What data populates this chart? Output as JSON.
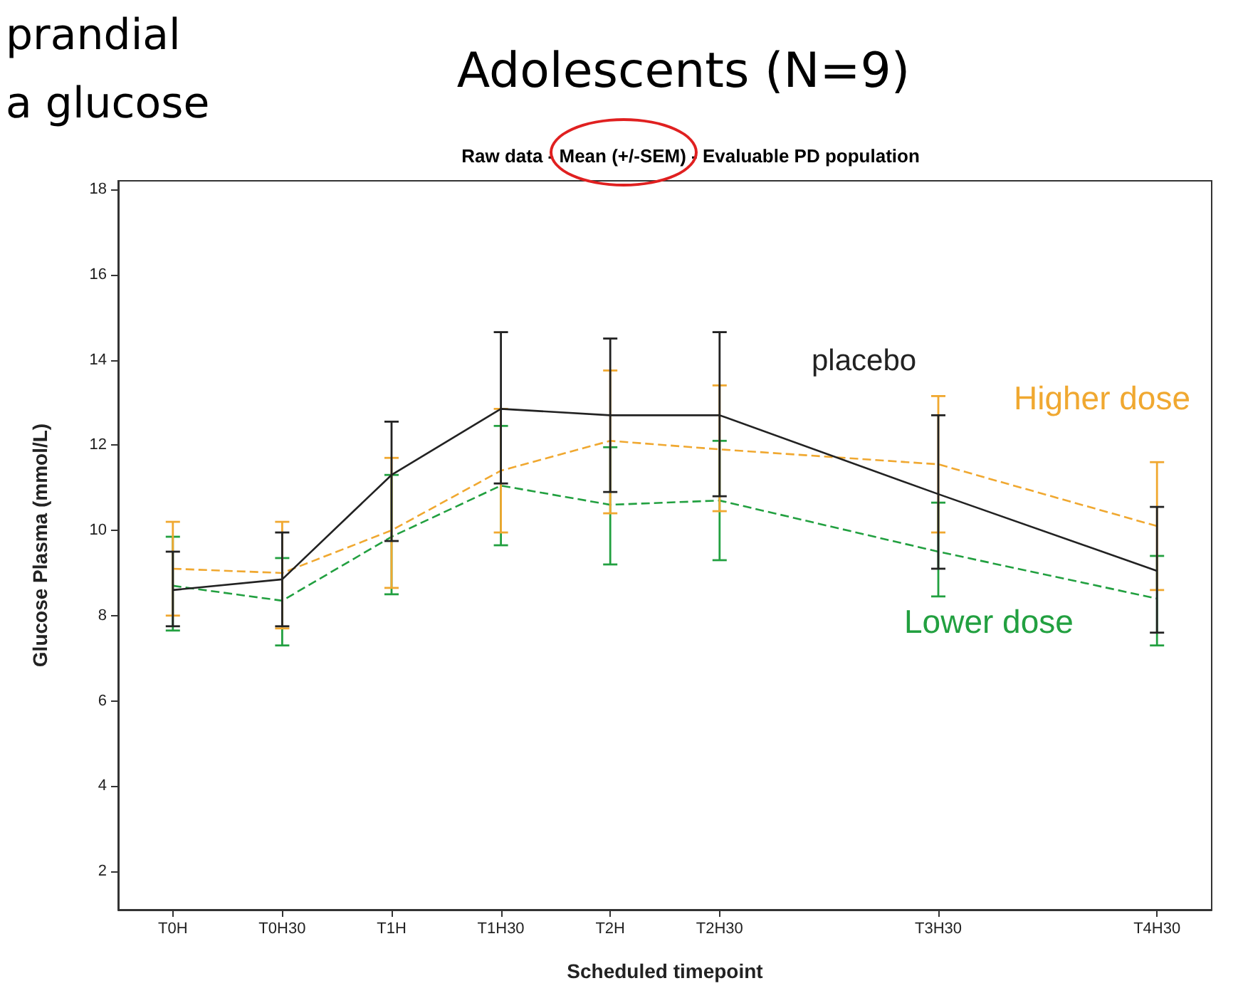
{
  "chart_data": {
    "type": "line",
    "title": "Adolescents (N=9)",
    "subtitle": "Raw data - Mean (+/-SEM) - Evaluable PD population",
    "xlabel": "Scheduled timepoint",
    "ylabel": "Glucose Plasma (mmol/L)",
    "annotations": [
      "prandial",
      "a glucose"
    ],
    "categories": [
      "T0H",
      "T0H30",
      "T1H",
      "T1H30",
      "T2H",
      "T2H30",
      null,
      "T3H30",
      null,
      "T4H30"
    ],
    "ylim": [
      1.1,
      18.2
    ],
    "yticks": [
      2,
      4,
      6,
      8,
      10,
      12,
      14,
      16,
      18
    ],
    "series": [
      {
        "name": "placebo",
        "color": "#222222",
        "line_style": "solid",
        "values": [
          8.6,
          8.85,
          11.3,
          12.85,
          12.7,
          12.7,
          null,
          10.85,
          null,
          9.05
        ],
        "errors": [
          [
            7.75,
            9.5
          ],
          [
            7.75,
            9.95
          ],
          [
            9.75,
            12.55
          ],
          [
            11.1,
            14.65
          ],
          [
            10.9,
            14.5
          ],
          [
            10.8,
            14.65
          ],
          null,
          [
            9.1,
            12.7
          ],
          null,
          [
            7.6,
            10.55
          ]
        ]
      },
      {
        "name": "Higher dose",
        "color": "#f0a830",
        "line_style": "dashed",
        "values": [
          9.1,
          9.0,
          10.0,
          11.4,
          12.1,
          11.9,
          null,
          11.55,
          null,
          10.1
        ],
        "errors": [
          [
            8.0,
            10.2
          ],
          [
            7.7,
            10.2
          ],
          [
            8.65,
            11.7
          ],
          [
            9.95,
            12.85
          ],
          [
            10.4,
            13.75
          ],
          [
            10.45,
            13.4
          ],
          null,
          [
            9.95,
            13.15
          ],
          null,
          [
            8.6,
            11.6
          ]
        ]
      },
      {
        "name": "Lower dose",
        "color": "#22a040",
        "line_style": "dashed",
        "values": [
          8.7,
          8.35,
          9.85,
          11.05,
          10.6,
          10.7,
          null,
          9.5,
          null,
          8.4
        ],
        "errors": [
          [
            7.65,
            9.85
          ],
          [
            7.3,
            9.35
          ],
          [
            8.5,
            11.3
          ],
          [
            9.65,
            12.45
          ],
          [
            9.2,
            11.95
          ],
          [
            9.3,
            12.1
          ],
          null,
          [
            8.45,
            10.65
          ],
          null,
          [
            7.3,
            9.4
          ]
        ]
      }
    ],
    "marker": "none",
    "legend": false,
    "grid": false
  }
}
